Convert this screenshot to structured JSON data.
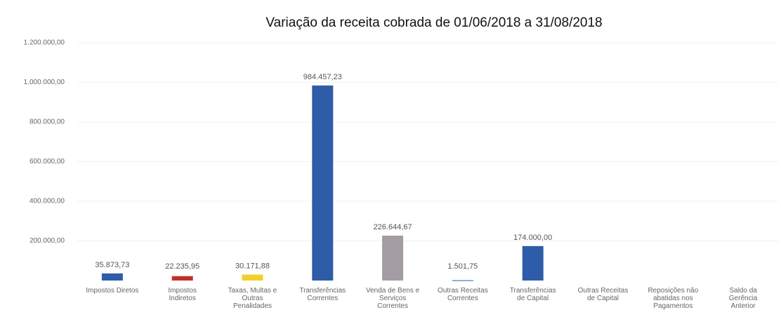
{
  "chart_data": {
    "type": "bar",
    "title": "Variação da receita cobrada de 01/06/2018 a 31/08/2018",
    "categories": [
      "Impostos Diretos",
      "Impostos Indiretos",
      "Taxas, Multas e Outras Penalidades",
      "Transferências Correntes",
      "Venda de Bens e Serviços Correntes",
      "Outras Receitas Correntes",
      "Transferências de Capital",
      "Outras Receitas de Capital",
      "Reposições não abatidas nos Pagamentos",
      "Saldo da Gerência Anterior"
    ],
    "values": [
      35873.73,
      22235.95,
      30171.88,
      984457.23,
      226644.67,
      1501.75,
      174000.0,
      null,
      null,
      null
    ],
    "value_labels": [
      "35.873,73",
      "22.235,95",
      "30.171,88",
      "984.457,23",
      "226.644,67",
      "1.501,75",
      "174.000,00",
      null,
      null,
      null
    ],
    "colors": [
      "#2f5ca8",
      "#c0302b",
      "#f2cf2f",
      "#2f5ca8",
      "#a39ca2",
      "#2f5ca8",
      "#2f5ca8",
      "#2f5ca8",
      "#2f5ca8",
      "#2f5ca8"
    ],
    "ylim": [
      0,
      1200000
    ],
    "yticks": [
      {
        "value": 200000,
        "label": "200.000,00"
      },
      {
        "value": 400000,
        "label": "400.000,00"
      },
      {
        "value": 600000,
        "label": "600.000,00"
      },
      {
        "value": 800000,
        "label": "800.000,00"
      },
      {
        "value": 1000000,
        "label": "1.000.000,00"
      },
      {
        "value": 1200000,
        "label": "1.200.000,00"
      }
    ],
    "grid": true
  }
}
